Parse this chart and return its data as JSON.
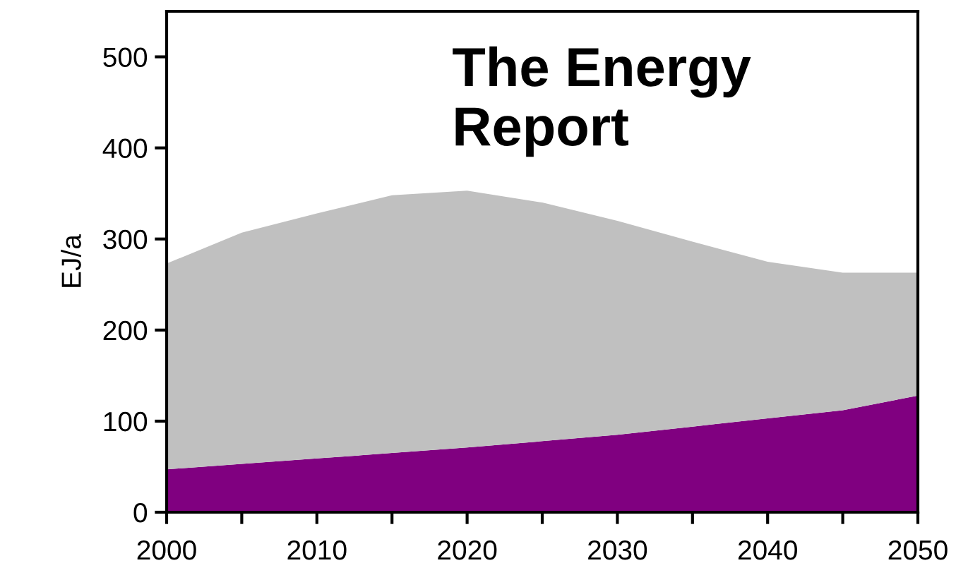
{
  "chart_data": {
    "type": "area",
    "stacked": true,
    "ylabel": "EJ/a",
    "annotations": [
      "The Energy\nReport"
    ],
    "x": [
      2000,
      2005,
      2010,
      2015,
      2020,
      2025,
      2030,
      2035,
      2040,
      2045,
      2050
    ],
    "series": [
      {
        "color": "#800080",
        "values": [
          47,
          53,
          59,
          65,
          71,
          78,
          85,
          94,
          103,
          112,
          128
        ]
      },
      {
        "color": "#c0c0c0",
        "values": [
          226,
          254,
          269,
          283,
          282,
          262,
          235,
          203,
          172,
          151,
          135
        ]
      }
    ],
    "xlim": [
      2000,
      2050
    ],
    "ylim": [
      0,
      550
    ],
    "xticks": [
      2000,
      {
        "value": 2005,
        "label": null
      },
      2010,
      {
        "value": 2015,
        "label": null
      },
      2020,
      {
        "value": 2025,
        "label": null
      },
      2030,
      {
        "value": 2035,
        "label": null
      },
      2040,
      {
        "value": 2045,
        "label": null
      },
      2050
    ],
    "yticks": [
      0,
      100,
      200,
      300,
      400,
      500
    ],
    "grid": false,
    "legend": false
  }
}
